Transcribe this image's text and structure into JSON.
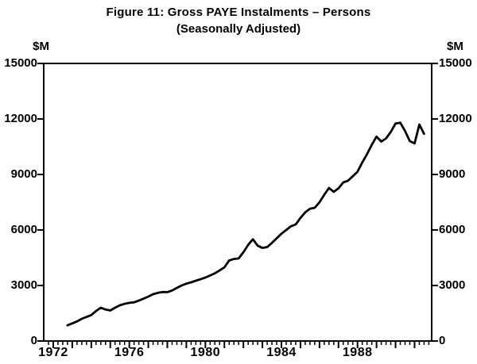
{
  "chart_data": {
    "type": "line",
    "title": "Figure 11: Gross PAYE Instalments – Persons",
    "subtitle": "(Seasonally Adjusted)",
    "y_unit": "$M",
    "xlim": [
      1971.5,
      1991.9
    ],
    "ylim": [
      0,
      15000
    ],
    "grid": false,
    "legend_position": "none",
    "ytick_values": [
      0,
      3000,
      6000,
      9000,
      12000,
      15000
    ],
    "xtick_labeled": [
      1972,
      1976,
      1980,
      1984,
      1988
    ],
    "xtick_minor_step": 0.25,
    "series": [
      {
        "name": "Gross PAYE instalments – persons (seasonally adjusted, $M)",
        "x": [
          1972.75,
          1973.0,
          1973.25,
          1973.5,
          1973.75,
          1974.0,
          1974.25,
          1974.5,
          1974.75,
          1975.0,
          1975.25,
          1975.5,
          1975.75,
          1976.0,
          1976.25,
          1976.5,
          1976.75,
          1977.0,
          1977.25,
          1977.5,
          1977.75,
          1978.0,
          1978.25,
          1978.5,
          1978.75,
          1979.0,
          1979.25,
          1979.5,
          1979.75,
          1980.0,
          1980.25,
          1980.5,
          1980.75,
          1981.0,
          1981.25,
          1981.5,
          1981.75,
          1982.0,
          1982.25,
          1982.5,
          1982.75,
          1983.0,
          1983.25,
          1983.5,
          1983.75,
          1984.0,
          1984.25,
          1984.5,
          1984.75,
          1985.0,
          1985.25,
          1985.5,
          1985.75,
          1986.0,
          1986.25,
          1986.5,
          1986.75,
          1987.0,
          1987.25,
          1987.5,
          1987.75,
          1988.0,
          1988.25,
          1988.5,
          1988.75,
          1989.0,
          1989.25,
          1989.5,
          1989.75,
          1990.0,
          1990.25,
          1990.5,
          1990.75,
          1991.0,
          1991.25,
          1991.5
        ],
        "values": [
          850,
          950,
          1060,
          1200,
          1300,
          1400,
          1620,
          1800,
          1700,
          1650,
          1800,
          1930,
          2010,
          2060,
          2090,
          2180,
          2290,
          2400,
          2530,
          2600,
          2650,
          2640,
          2730,
          2870,
          3000,
          3100,
          3170,
          3260,
          3340,
          3430,
          3540,
          3660,
          3820,
          3980,
          4350,
          4430,
          4460,
          4800,
          5200,
          5500,
          5150,
          5030,
          5080,
          5300,
          5550,
          5800,
          6000,
          6200,
          6300,
          6650,
          6950,
          7150,
          7200,
          7500,
          7900,
          8270,
          8060,
          8250,
          8570,
          8660,
          8900,
          9150,
          9650,
          10100,
          10600,
          11050,
          10780,
          10950,
          11300,
          11750,
          11800,
          11350,
          10800,
          10680,
          11700,
          11200
        ]
      }
    ]
  }
}
